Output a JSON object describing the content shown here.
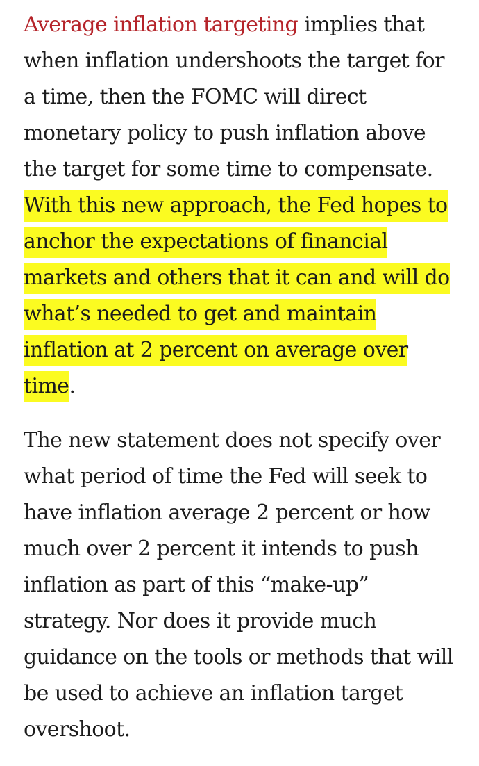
{
  "article": {
    "paragraph_1": {
      "link_text": "Average inflation targeting",
      "text_after_link": " implies that when inflation undershoots the target for a time, then the FOMC will direct monetary policy to push inflation above the target for some time to compensate. ",
      "highlighted_text": "With this new approach, the Fed hopes to anchor the expectations of financial markets and others that it can and will do what’s needed to get and maintain inflation at 2 percent on average over time",
      "trailing_text": "."
    },
    "paragraph_2": {
      "text": "The new statement does not specify over what period of time the Fed will seek to have inflation average 2 percent or how much over 2 percent it intends to push inflation as part of this “make-up” strategy. Nor does it provide much guidance on the tools or methods that will be used to achieve an inflation target overshoot."
    }
  },
  "colors": {
    "link": "#b5242a",
    "highlight": "#fbfb21",
    "text": "#1c1c1c",
    "background": "#ffffff"
  }
}
